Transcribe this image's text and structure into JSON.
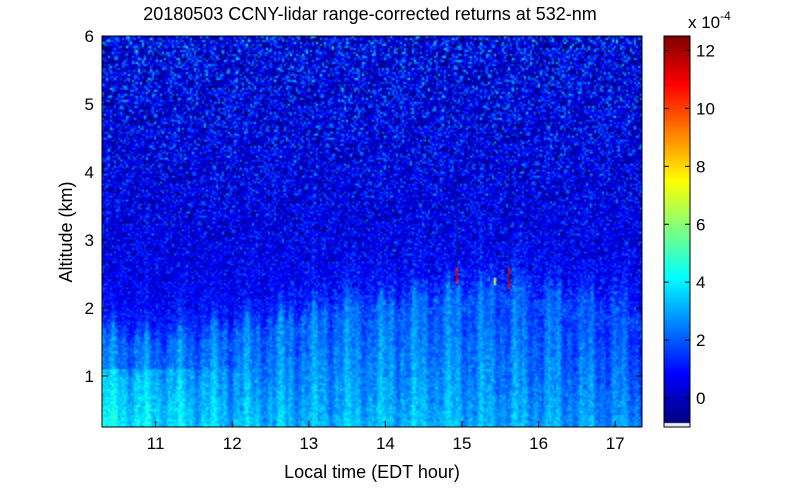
{
  "chart_data": {
    "type": "heatmap",
    "title": "20180503 CCNY-lidar range-corrected returns at 532-nm",
    "xlabel": "Local time (EDT hour)",
    "ylabel": "Altitude (km)",
    "xlim": [
      10.3,
      17.35
    ],
    "ylim": [
      0.25,
      6.0
    ],
    "x_ticks": [
      11,
      12,
      13,
      14,
      15,
      16,
      17
    ],
    "y_ticks": [
      1,
      2,
      3,
      4,
      5,
      6
    ],
    "colorbar": {
      "exponent_label": "x 10",
      "exponent_power": "-4",
      "range": [
        -1.0,
        12.5
      ],
      "ticks": [
        0,
        2,
        4,
        6,
        8,
        10,
        12
      ],
      "colormap": "jet"
    },
    "signal_profile": {
      "boundary_layer_top_km": [
        [
          10.3,
          1.55
        ],
        [
          11.0,
          1.45
        ],
        [
          11.5,
          1.55
        ],
        [
          12.0,
          1.65
        ],
        [
          12.5,
          1.7
        ],
        [
          13.0,
          1.85
        ],
        [
          13.5,
          1.95
        ],
        [
          14.0,
          2.0
        ],
        [
          14.5,
          2.1
        ],
        [
          15.0,
          2.15
        ],
        [
          15.5,
          2.2
        ],
        [
          16.0,
          2.1
        ],
        [
          16.5,
          2.0
        ],
        [
          17.0,
          1.9
        ],
        [
          17.35,
          1.8
        ]
      ],
      "near_surface_peak_value_e4": 3.5,
      "aerosol_layer_value_e4": 2.0,
      "free_troposphere_value_e4": 0.4
    },
    "features": [
      {
        "time": 14.92,
        "alt_range_km": [
          2.38,
          2.6
        ],
        "value_e4": 12
      },
      {
        "time": 15.42,
        "alt_range_km": [
          2.35,
          2.45
        ],
        "value_e4": 8
      },
      {
        "time": 15.6,
        "alt_range_km": [
          2.3,
          2.6
        ],
        "value_e4": 12.5
      }
    ]
  }
}
